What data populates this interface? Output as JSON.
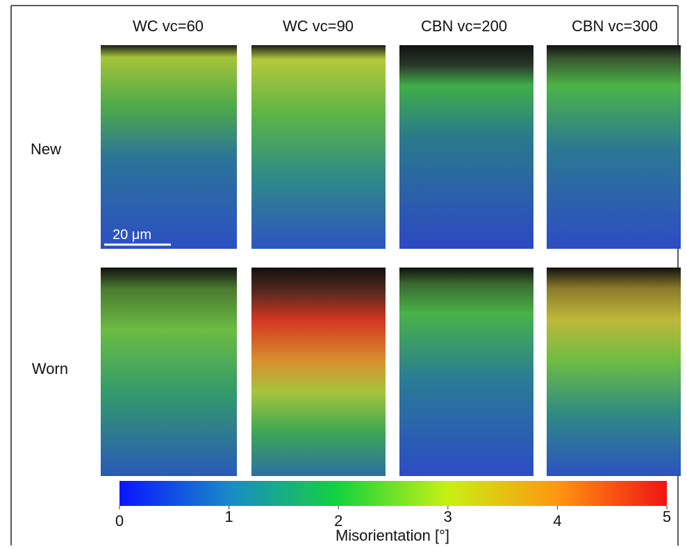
{
  "columns": [
    "WC vc=60",
    "WC vc=90",
    "CBN vc=200",
    "CBN vc=300"
  ],
  "rows": [
    "New",
    "Worn"
  ],
  "scale_bar": "20 μm",
  "colorbar": {
    "label": "Misorientation [°]",
    "lim": [
      0,
      5
    ],
    "ticks": [
      0,
      1,
      2,
      3,
      4,
      5
    ]
  }
}
